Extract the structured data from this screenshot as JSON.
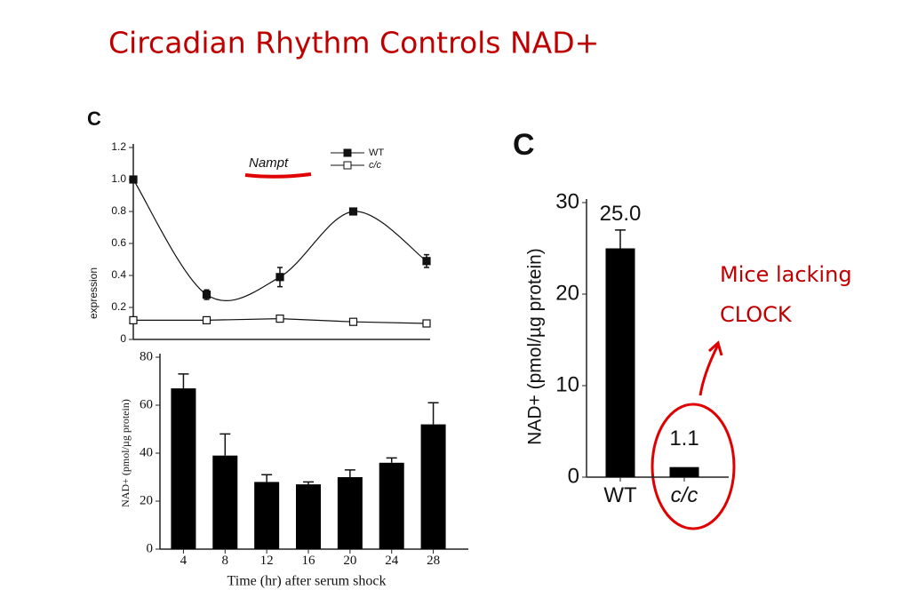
{
  "slide_title": "Circadian Rhythm Controls NAD+",
  "annotation": [
    "Mice lacking",
    "CLOCK"
  ],
  "chart_data": [
    {
      "type": "line",
      "panel": "C",
      "ylabel": "expression",
      "annotation": "Nampt",
      "x": [
        4,
        10,
        16,
        22,
        28
      ],
      "xlim": [
        4,
        28
      ],
      "ylim": [
        0,
        1.2
      ],
      "yticks": [
        0,
        0.2,
        0.4,
        0.6,
        0.8,
        {
          "value": 1,
          "label": "1.0"
        },
        1.2
      ],
      "series": [
        {
          "name": "WT",
          "color": "#111111",
          "marker": "filled",
          "smooth": true,
          "values": [
            1.0,
            0.28,
            0.39,
            0.8,
            0.49
          ],
          "errors": [
            0.02,
            0.03,
            0.06,
            0.02,
            0.04
          ]
        },
        {
          "name": "c/c",
          "color": "#111111",
          "marker": "open",
          "smooth": false,
          "values": [
            0.12,
            0.12,
            0.13,
            0.11,
            0.1
          ]
        }
      ]
    },
    {
      "type": "bar",
      "ylabel": "NAD+ (pmol/µg protein)",
      "xlabel": "Time (hr) after serum shock",
      "categories": [
        "4",
        "8",
        "12",
        "16",
        "20",
        "24",
        "28"
      ],
      "values": [
        67,
        39,
        28,
        27,
        30,
        36,
        52
      ],
      "errors": [
        6,
        9,
        3,
        1,
        3,
        2,
        9
      ],
      "color": "#000000",
      "ylim": [
        0,
        80
      ],
      "yticks": [
        0,
        20,
        40,
        60,
        80
      ]
    },
    {
      "type": "bar",
      "panel": "C",
      "ylabel": "NAD+ (pmol/µg protein)",
      "categories": [
        "WT",
        "c/c"
      ],
      "values": [
        25.0,
        1.1
      ],
      "value_labels": [
        "25.0",
        "1.1"
      ],
      "errors": [
        2,
        null
      ],
      "color": "#000000",
      "ylim": [
        0,
        30
      ],
      "yticks": [
        0,
        10,
        20,
        30
      ]
    }
  ]
}
